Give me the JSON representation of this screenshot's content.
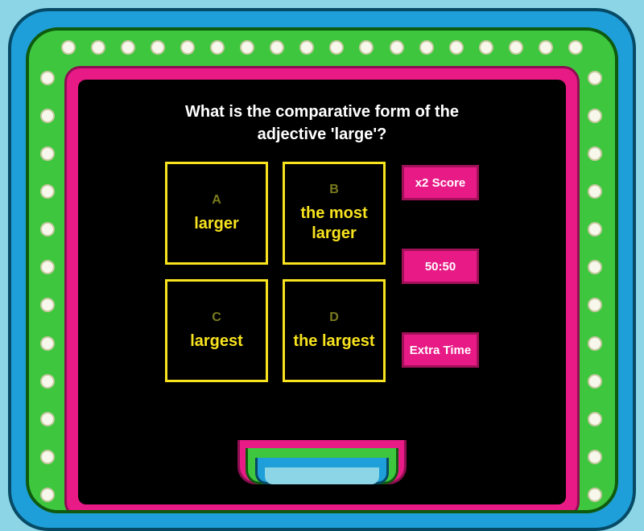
{
  "question": "What is the comparative form of the adjective 'large'?",
  "answers": [
    {
      "letter": "A",
      "text": "larger"
    },
    {
      "letter": "B",
      "text": "the most larger"
    },
    {
      "letter": "C",
      "text": "largest"
    },
    {
      "letter": "D",
      "text": "the largest"
    }
  ],
  "lifelines": [
    {
      "label": "x2 Score"
    },
    {
      "label": "50:50"
    },
    {
      "label": "Extra Time"
    }
  ],
  "styling": {
    "page_bg": "#8bd5e6",
    "blue_frame": "#1f9fd9",
    "blue_border": "#074a66",
    "green_frame": "#3ec73e",
    "green_border": "#0e5a0e",
    "magenta_frame": "#e81a86",
    "magenta_border": "#8d0e51",
    "panel_bg": "#000000",
    "answer_border": "#f8e31e",
    "answer_text": "#f8e31e",
    "answer_letter": "#7a7a1e",
    "light_fill": "#f7f7ec",
    "light_border": "#c7c7a0",
    "question_color": "#ffffff",
    "lifeline_text": "#ffffff",
    "question_fontsize": 20,
    "answer_fontsize": 20,
    "letter_fontsize": 16,
    "lifeline_fontsize": 15,
    "answer_box_size": 128,
    "answer_gap": 18,
    "lifeline_width": 96,
    "lifeline_height": 44,
    "lights_top_count": 18,
    "lights_side_count": 12
  }
}
